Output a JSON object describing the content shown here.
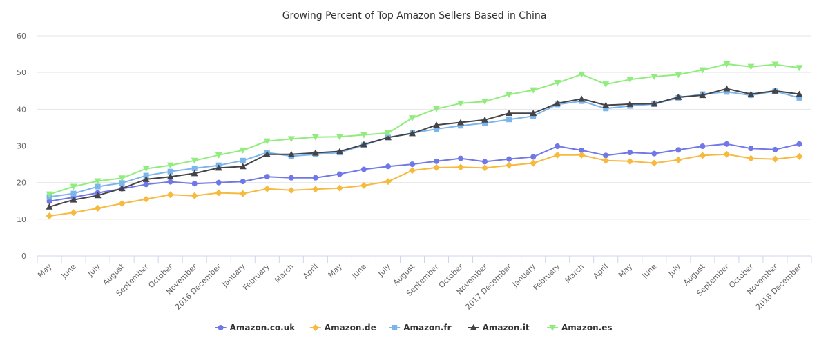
{
  "chart_data": {
    "type": "line",
    "title": "Growing Percent of Top Amazon Sellers Based in China",
    "xlabel": "",
    "ylabel": "",
    "ylim": [
      0,
      60
    ],
    "yticks": [
      0,
      10,
      20,
      30,
      40,
      50,
      60
    ],
    "grid": true,
    "legend_position": "bottom-center",
    "categories": [
      "May",
      "June",
      "July",
      "August",
      "September",
      "October",
      "November",
      "2016 December",
      "January",
      "February",
      "March",
      "April",
      "May",
      "June",
      "July",
      "August",
      "September",
      "October",
      "November",
      "2017 December",
      "January",
      "February",
      "March",
      "April",
      "May",
      "June",
      "July",
      "August",
      "September",
      "October",
      "November",
      "2018 December"
    ],
    "series": [
      {
        "name": "Amazon.co.uk",
        "color": "#7077e6",
        "marker": "circle",
        "values": [
          14.9,
          16.0,
          17.2,
          18.3,
          19.5,
          20.2,
          19.7,
          20.0,
          20.3,
          21.6,
          21.3,
          21.3,
          22.3,
          23.6,
          24.4,
          25.0,
          25.8,
          26.6,
          25.7,
          26.4,
          27.0,
          29.9,
          28.8,
          27.4,
          28.2,
          27.9,
          28.9,
          29.9,
          30.5,
          29.3,
          29.0,
          30.5
        ]
      },
      {
        "name": "Amazon.de",
        "color": "#f7b93e",
        "marker": "diamond",
        "values": [
          10.9,
          11.8,
          13.0,
          14.3,
          15.5,
          16.7,
          16.4,
          17.2,
          17.0,
          18.3,
          17.9,
          18.2,
          18.5,
          19.2,
          20.3,
          23.3,
          24.1,
          24.2,
          24.0,
          24.7,
          25.3,
          27.5,
          27.5,
          26.0,
          25.8,
          25.3,
          26.2,
          27.4,
          27.7,
          26.6,
          26.4,
          27.1
        ]
      },
      {
        "name": "Amazon.fr",
        "color": "#7cb5ec",
        "marker": "square",
        "values": [
          16.1,
          17.0,
          18.9,
          19.9,
          21.9,
          23.0,
          23.9,
          24.7,
          26.0,
          28.2,
          27.2,
          27.7,
          28.2,
          30.2,
          32.3,
          33.5,
          34.6,
          35.5,
          36.2,
          37.2,
          38.1,
          41.3,
          42.2,
          40.2,
          40.9,
          41.4,
          43.1,
          44.1,
          44.7,
          43.8,
          44.9,
          43.1
        ]
      },
      {
        "name": "Amazon.it",
        "color": "#434348",
        "marker": "triangle",
        "values": [
          13.4,
          15.3,
          16.5,
          18.4,
          20.9,
          21.6,
          22.5,
          24.0,
          24.4,
          27.7,
          27.7,
          28.1,
          28.5,
          30.4,
          32.3,
          33.4,
          35.7,
          36.4,
          37.1,
          38.9,
          38.9,
          41.6,
          42.8,
          41.1,
          41.4,
          41.5,
          43.3,
          43.8,
          45.6,
          44.1,
          45.0,
          44.1
        ]
      },
      {
        "name": "Amazon.es",
        "color": "#90ed7d",
        "marker": "triangle-down",
        "values": [
          16.8,
          18.9,
          20.4,
          21.2,
          23.8,
          24.7,
          26.0,
          27.5,
          28.8,
          31.3,
          31.9,
          32.4,
          32.5,
          33.0,
          33.5,
          37.6,
          40.1,
          41.6,
          42.1,
          44.0,
          45.2,
          47.2,
          49.5,
          46.8,
          48.1,
          48.9,
          49.4,
          50.7,
          52.3,
          51.6,
          52.2,
          51.3
        ]
      }
    ]
  }
}
